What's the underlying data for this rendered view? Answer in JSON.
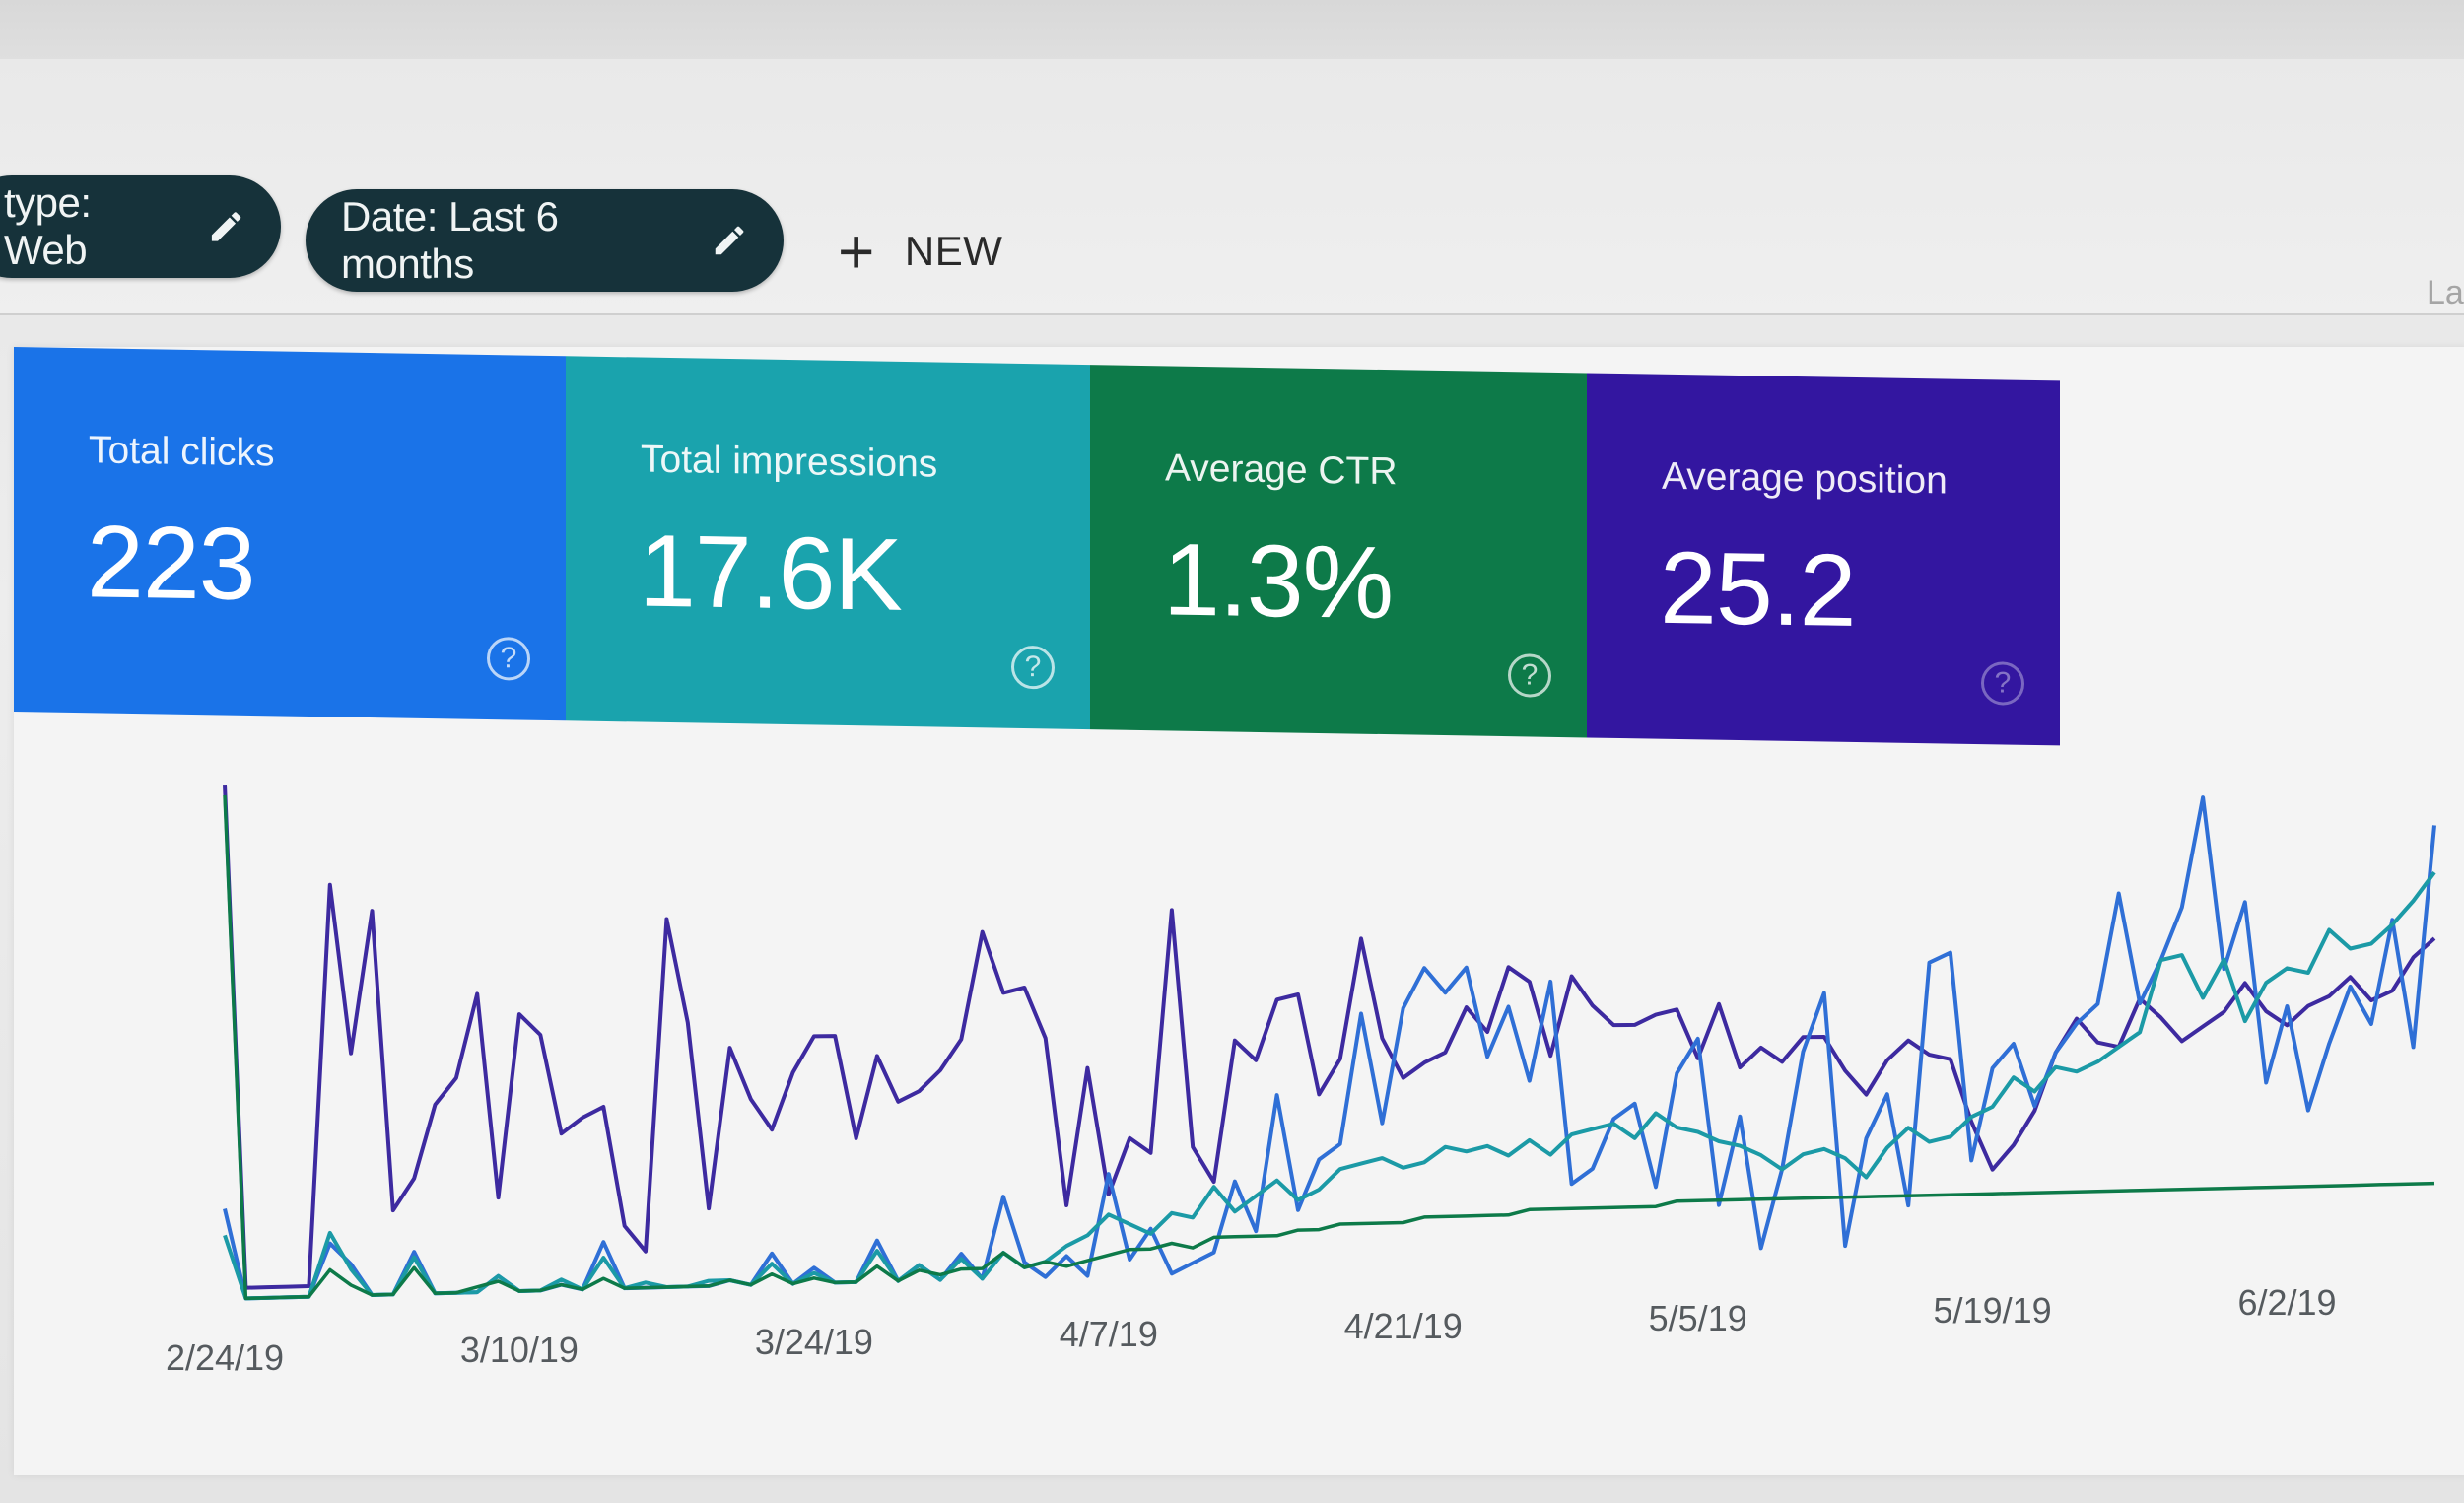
{
  "filters": {
    "type_chip": "type: Web",
    "date_chip": "Date: Last 6 months",
    "new_button": "NEW",
    "truncated_label": "La"
  },
  "metrics": [
    {
      "label": "Total clicks",
      "value": "223",
      "color": "#1a73e8"
    },
    {
      "label": "Total impressions",
      "value": "17.6K",
      "color": "#1aa3ad"
    },
    {
      "label": "Average CTR",
      "value": "1.3%",
      "color": "#0d7a49"
    },
    {
      "label": "Average position",
      "value": "25.2",
      "color": "#3316a0"
    }
  ],
  "chart_data": {
    "type": "line",
    "xlabel": "",
    "ylabel": "",
    "grid": false,
    "x": [
      "2/24/19",
      "2/25/19",
      "2/26/19",
      "2/27/19",
      "2/28/19",
      "3/1/19",
      "3/2/19",
      "3/3/19",
      "3/4/19",
      "3/5/19",
      "3/6/19",
      "3/7/19",
      "3/8/19",
      "3/9/19",
      "3/10/19",
      "3/11/19",
      "3/12/19",
      "3/13/19",
      "3/14/19",
      "3/15/19",
      "3/16/19",
      "3/17/19",
      "3/18/19",
      "3/19/19",
      "3/20/19",
      "3/21/19",
      "3/22/19",
      "3/23/19",
      "3/24/19",
      "3/25/19",
      "3/26/19",
      "3/27/19",
      "3/28/19",
      "3/29/19",
      "3/30/19",
      "3/31/19",
      "4/1/19",
      "4/2/19",
      "4/3/19",
      "4/4/19",
      "4/5/19",
      "4/6/19",
      "4/7/19",
      "4/8/19",
      "4/9/19",
      "4/10/19",
      "4/11/19",
      "4/12/19",
      "4/13/19",
      "4/14/19",
      "4/15/19",
      "4/16/19",
      "4/17/19",
      "4/18/19",
      "4/19/19",
      "4/20/19",
      "4/21/19",
      "4/22/19",
      "4/23/19",
      "4/24/19",
      "4/25/19",
      "4/26/19",
      "4/27/19",
      "4/28/19",
      "4/29/19",
      "4/30/19",
      "5/1/19",
      "5/2/19",
      "5/3/19",
      "5/4/19",
      "5/5/19",
      "5/6/19",
      "5/7/19",
      "5/8/19",
      "5/9/19",
      "5/10/19",
      "5/11/19",
      "5/12/19",
      "5/13/19",
      "5/14/19",
      "5/15/19",
      "5/16/19",
      "5/17/19",
      "5/18/19",
      "5/19/19",
      "5/20/19",
      "5/21/19",
      "5/22/19",
      "5/23/19",
      "5/24/19",
      "5/25/19",
      "5/26/19",
      "5/27/19",
      "5/28/19",
      "5/29/19",
      "5/30/19",
      "5/31/19",
      "6/1/19",
      "6/2/19",
      "6/3/19",
      "6/4/19",
      "6/5/19",
      "6/6/19",
      "6/7/19",
      "6/8/19",
      "6/9/19"
    ],
    "tick_labels": [
      "2/24/19",
      "3/10/19",
      "3/24/19",
      "4/7/19",
      "4/21/19",
      "5/5/19",
      "5/19/19",
      "6/2/19"
    ],
    "series": [
      {
        "color": "#3d2aa0",
        "values": [
          0.97,
          0.02,
          0.02,
          0.02,
          0.02,
          0.78,
          0.46,
          0.73,
          0.16,
          0.22,
          0.36,
          0.41,
          0.57,
          0.18,
          0.53,
          0.49,
          0.3,
          0.33,
          0.35,
          0.12,
          0.07,
          0.71,
          0.51,
          0.15,
          0.46,
          0.36,
          0.3,
          0.41,
          0.48,
          0.48,
          0.28,
          0.44,
          0.35,
          0.37,
          0.41,
          0.47,
          0.68,
          0.56,
          0.57,
          0.47,
          0.14,
          0.41,
          0.16,
          0.27,
          0.24,
          0.72,
          0.25,
          0.18,
          0.46,
          0.42,
          0.54,
          0.55,
          0.35,
          0.42,
          0.66,
          0.46,
          0.38,
          0.41,
          0.43,
          0.52,
          0.47,
          0.6,
          0.57,
          0.42,
          0.58,
          0.52,
          0.48,
          0.48,
          0.5,
          0.51,
          0.41,
          0.52,
          0.39,
          0.43,
          0.4,
          0.45,
          0.45,
          0.38,
          0.33,
          0.4,
          0.44,
          0.41,
          0.4,
          0.27,
          0.17,
          0.22,
          0.29,
          0.41,
          0.48,
          0.43,
          0.42,
          0.52,
          0.48,
          0.43,
          0.46,
          0.49,
          0.55,
          0.49,
          0.46,
          0.5,
          0.52,
          0.56,
          0.51,
          0.53,
          0.6,
          0.64
        ]
      },
      {
        "color": "#2f6fd6",
        "values": [
          0.17,
          0.0,
          0.0,
          0.0,
          0.0,
          0.1,
          0.06,
          0.0,
          0.0,
          0.08,
          0.0,
          0.0,
          0.0,
          0.03,
          0.0,
          0.0,
          0.01,
          0.0,
          0.09,
          0.0,
          0.0,
          0.0,
          0.0,
          0.0,
          0.01,
          0.0,
          0.06,
          0.0,
          0.03,
          0.0,
          0.0,
          0.08,
          0.0,
          0.03,
          0.0,
          0.05,
          0.0,
          0.16,
          0.03,
          0.0,
          0.04,
          0.0,
          0.2,
          0.03,
          0.09,
          0.0,
          0.02,
          0.04,
          0.18,
          0.08,
          0.35,
          0.12,
          0.22,
          0.25,
          0.51,
          0.29,
          0.52,
          0.6,
          0.55,
          0.6,
          0.42,
          0.52,
          0.37,
          0.57,
          0.16,
          0.19,
          0.29,
          0.32,
          0.15,
          0.38,
          0.45,
          0.11,
          0.29,
          0.02,
          0.18,
          0.42,
          0.54,
          0.02,
          0.24,
          0.33,
          0.1,
          0.6,
          0.62,
          0.19,
          0.38,
          0.43,
          0.3,
          0.41,
          0.47,
          0.51,
          0.74,
          0.51,
          0.6,
          0.71,
          0.94,
          0.58,
          0.72,
          0.34,
          0.5,
          0.28,
          0.42,
          0.54,
          0.46,
          0.68,
          0.41,
          0.88
        ]
      },
      {
        "color": "#1b9aa6",
        "values": [
          0.12,
          0.0,
          0.0,
          0.0,
          0.0,
          0.12,
          0.05,
          0.0,
          0.0,
          0.07,
          0.0,
          0.0,
          0.0,
          0.03,
          0.0,
          0.0,
          0.02,
          0.0,
          0.06,
          0.0,
          0.01,
          0.0,
          0.0,
          0.01,
          0.01,
          0.0,
          0.04,
          0.0,
          0.02,
          0.0,
          0.0,
          0.06,
          0.0,
          0.03,
          0.0,
          0.04,
          0.0,
          0.05,
          0.02,
          0.03,
          0.06,
          0.08,
          0.12,
          0.1,
          0.08,
          0.12,
          0.11,
          0.17,
          0.12,
          0.15,
          0.18,
          0.14,
          0.16,
          0.2,
          0.21,
          0.22,
          0.2,
          0.21,
          0.24,
          0.23,
          0.24,
          0.22,
          0.25,
          0.22,
          0.26,
          0.27,
          0.28,
          0.25,
          0.3,
          0.27,
          0.26,
          0.24,
          0.23,
          0.21,
          0.18,
          0.21,
          0.22,
          0.2,
          0.16,
          0.22,
          0.26,
          0.23,
          0.24,
          0.28,
          0.3,
          0.36,
          0.33,
          0.38,
          0.37,
          0.39,
          0.42,
          0.45,
          0.6,
          0.61,
          0.52,
          0.6,
          0.47,
          0.55,
          0.58,
          0.57,
          0.66,
          0.62,
          0.63,
          0.67,
          0.72,
          0.78
        ]
      },
      {
        "color": "#0d7a49",
        "values": [
          0.95,
          0.0,
          0.0,
          0.0,
          0.0,
          0.05,
          0.02,
          0.0,
          0.0,
          0.05,
          0.0,
          0.0,
          0.01,
          0.02,
          0.0,
          0.0,
          0.01,
          0.0,
          0.02,
          0.0,
          0.0,
          0.0,
          0.0,
          0.0,
          0.01,
          0.0,
          0.02,
          0.0,
          0.01,
          0.0,
          0.0,
          0.03,
          0.0,
          0.02,
          0.01,
          0.02,
          0.02,
          0.05,
          0.02,
          0.03,
          0.02,
          0.03,
          0.04,
          0.05,
          0.05,
          0.06,
          0.05,
          0.07,
          0.07,
          0.07,
          0.07,
          0.08,
          0.08,
          0.09,
          0.09,
          0.09,
          0.09,
          0.1,
          0.1,
          0.1,
          0.1,
          0.1,
          0.11,
          0.11,
          0.11,
          0.11,
          0.11,
          0.11,
          0.11,
          0.12,
          0.12,
          0.12,
          0.12,
          0.12,
          0.12,
          0.12,
          0.12,
          0.12,
          0.12,
          0.12,
          0.12,
          0.12,
          0.12,
          0.12,
          0.12,
          0.12,
          0.12,
          0.12,
          0.12,
          0.12,
          0.12,
          0.12,
          0.12,
          0.12,
          0.12,
          0.12,
          0.12,
          0.12,
          0.12,
          0.12,
          0.12,
          0.12,
          0.12,
          0.12,
          0.12,
          0.12
        ]
      }
    ]
  }
}
